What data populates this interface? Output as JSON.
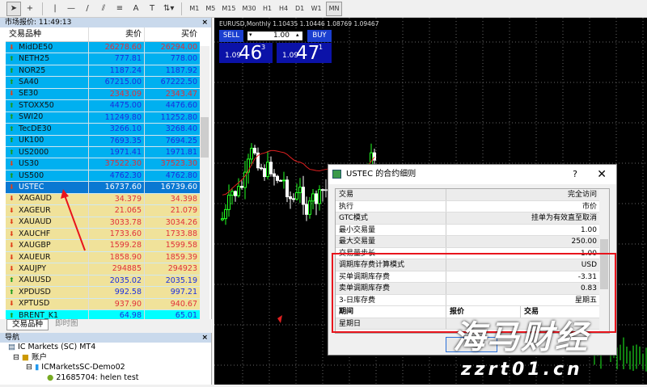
{
  "toolbar": {
    "timeframes": [
      "M1",
      "M5",
      "M15",
      "M30",
      "H1",
      "H4",
      "D1",
      "W1",
      "MN"
    ],
    "active_timeframe": "MN"
  },
  "market_watch": {
    "title": "市场报价: 11:49:13",
    "columns": [
      "交易品种",
      "卖价",
      "买价"
    ],
    "rows": [
      {
        "symbol": "MidDE50",
        "bid": "26278.60",
        "ask": "26294.00",
        "dir": "down",
        "bg": "#00b0f0"
      },
      {
        "symbol": "NETH25",
        "bid": "777.81",
        "ask": "778.00",
        "dir": "up",
        "bg": "#00b0f0"
      },
      {
        "symbol": "NOR25",
        "bid": "1187.24",
        "ask": "1187.92",
        "dir": "up",
        "bg": "#00b0f0"
      },
      {
        "symbol": "SA40",
        "bid": "67215.00",
        "ask": "67222.50",
        "dir": "up",
        "bg": "#00b0f0"
      },
      {
        "symbol": "SE30",
        "bid": "2343.09",
        "ask": "2343.47",
        "dir": "down",
        "bg": "#00b0f0"
      },
      {
        "symbol": "STOXX50",
        "bid": "4475.00",
        "ask": "4476.60",
        "dir": "up",
        "bg": "#00b0f0"
      },
      {
        "symbol": "SWI20",
        "bid": "11249.80",
        "ask": "11252.80",
        "dir": "up",
        "bg": "#00b0f0"
      },
      {
        "symbol": "TecDE30",
        "bid": "3266.10",
        "ask": "3268.40",
        "dir": "up",
        "bg": "#00b0f0"
      },
      {
        "symbol": "UK100",
        "bid": "7693.35",
        "ask": "7694.25",
        "dir": "up",
        "bg": "#00b0f0"
      },
      {
        "symbol": "US2000",
        "bid": "1971.41",
        "ask": "1971.81",
        "dir": "up",
        "bg": "#00b0f0"
      },
      {
        "symbol": "US30",
        "bid": "37522.30",
        "ask": "37523.30",
        "dir": "down",
        "bg": "#00b0f0"
      },
      {
        "symbol": "US500",
        "bid": "4762.30",
        "ask": "4762.80",
        "dir": "up",
        "bg": "#00b0f0"
      },
      {
        "symbol": "USTEC",
        "bid": "16737.60",
        "ask": "16739.60",
        "dir": "down",
        "bg": "#0a78d2",
        "selected": true
      },
      {
        "symbol": "XAGAUD",
        "bid": "34.379",
        "ask": "34.398",
        "dir": "down",
        "bg": "#f0e29a"
      },
      {
        "symbol": "XAGEUR",
        "bid": "21.065",
        "ask": "21.079",
        "dir": "down",
        "bg": "#f0e29a"
      },
      {
        "symbol": "XAUAUD",
        "bid": "3033.78",
        "ask": "3034.26",
        "dir": "down",
        "bg": "#f0e29a"
      },
      {
        "symbol": "XAUCHF",
        "bid": "1733.60",
        "ask": "1733.88",
        "dir": "down",
        "bg": "#f0e29a"
      },
      {
        "symbol": "XAUGBP",
        "bid": "1599.28",
        "ask": "1599.58",
        "dir": "down",
        "bg": "#f0e29a"
      },
      {
        "symbol": "XAUEUR",
        "bid": "1858.90",
        "ask": "1859.39",
        "dir": "down",
        "bg": "#f0e29a"
      },
      {
        "symbol": "XAUJPY",
        "bid": "294885",
        "ask": "294923",
        "dir": "down",
        "bg": "#f0e29a"
      },
      {
        "symbol": "XAUUSD",
        "bid": "2035.02",
        "ask": "2035.19",
        "dir": "up",
        "bg": "#f0e29a"
      },
      {
        "symbol": "XPDUSD",
        "bid": "992.58",
        "ask": "997.21",
        "dir": "up",
        "bg": "#f0e29a"
      },
      {
        "symbol": "XPTUSD",
        "bid": "937.90",
        "ask": "940.67",
        "dir": "down",
        "bg": "#f0e29a"
      },
      {
        "symbol": "BRENT_K1",
        "bid": "64.98",
        "ask": "65.01",
        "dir": "up",
        "bg": "#00ffff"
      }
    ],
    "tabs": [
      "交易品种",
      "即时图"
    ]
  },
  "navigator": {
    "title": "导航",
    "tree": [
      "IC Markets (SC) MT4",
      "账户",
      "ICMarketsSC-Demo02",
      "21685704: helen test"
    ]
  },
  "chart": {
    "title": "EURUSD,Monthly  1.10435 1.10446 1.08769 1.09467",
    "sell_label": "SELL",
    "buy_label": "BUY",
    "lot": "1.00",
    "sell_small": "1.09",
    "sell_big": "46",
    "sell_pip": "3",
    "buy_small": "1.09",
    "buy_big": "47",
    "buy_pip": "1"
  },
  "dialog": {
    "title": "USTEC 的合约细则",
    "help": "?",
    "close": "✕",
    "rows": [
      [
        "交易",
        "完全访问"
      ],
      [
        "执行",
        "市价"
      ],
      [
        "GTC模式",
        "挂单为有效直至取消"
      ],
      [
        "最小交易量",
        "1.00"
      ],
      [
        "最大交易量",
        "250.00"
      ],
      [
        "交易量步长",
        "1.00"
      ],
      [
        "调期库存费计算模式",
        "USD"
      ],
      [
        "买单调期库存费",
        "-3.31"
      ],
      [
        "卖单调期库存费",
        "0.83"
      ],
      [
        "3-日库存费",
        "星期五"
      ]
    ],
    "session_header": [
      "期间",
      "报价",
      "交易"
    ],
    "session_rows": [
      [
        "星期日"
      ]
    ]
  },
  "watermark": {
    "text": "海马财经",
    "url": "zzrt01.cn"
  },
  "colors": {
    "bid_up": "#1a2ee0",
    "bid_down": "#e0303a",
    "highlight": "#e8141c"
  }
}
